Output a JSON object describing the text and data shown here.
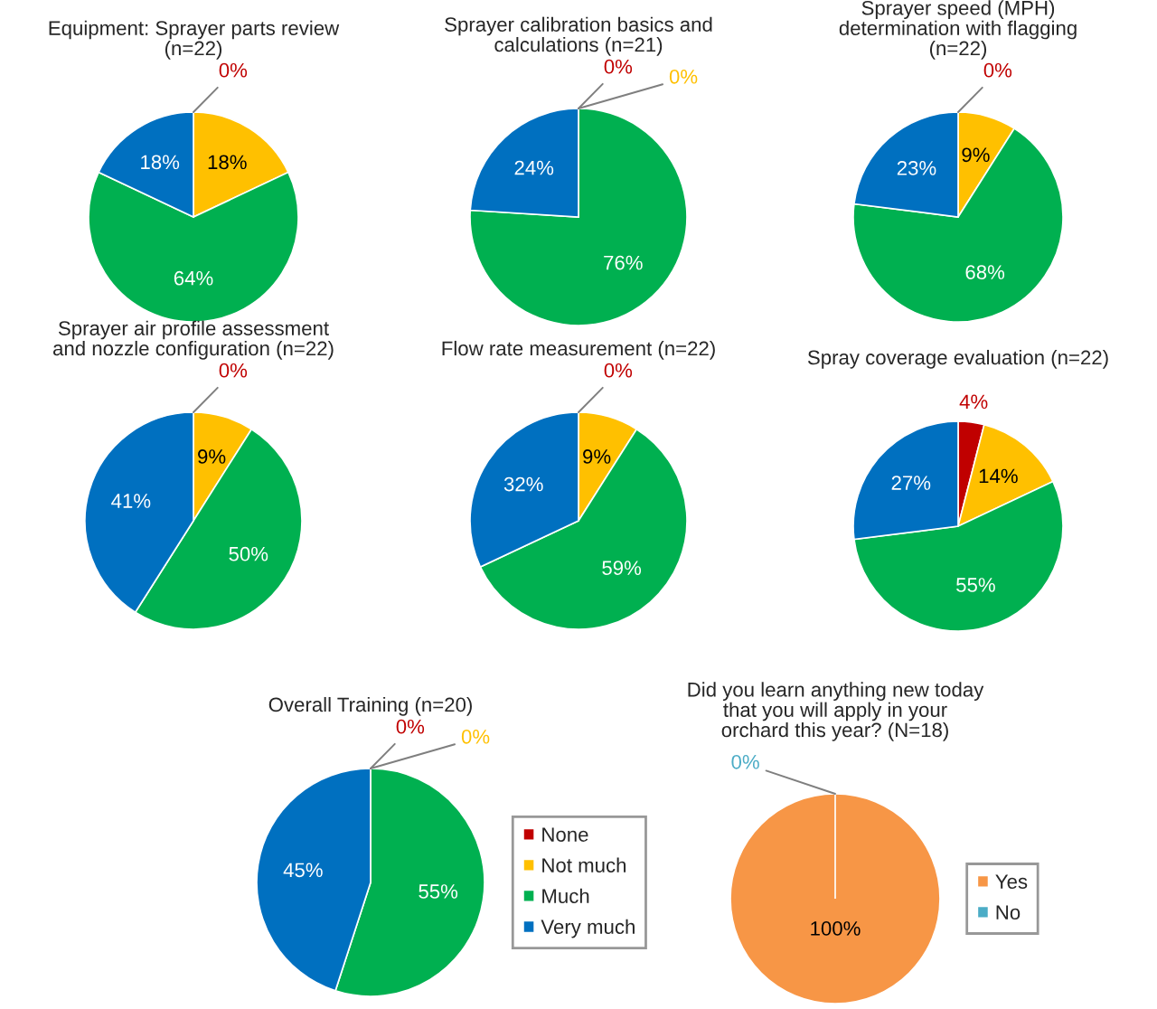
{
  "chart_data": [
    {
      "type": "pie",
      "title": "Equipment: Sprayer parts review\n(n=22)",
      "categories": [
        null,
        null,
        null,
        null
      ],
      "values": [
        0,
        18,
        64,
        18
      ],
      "colors": [
        "#c00000",
        "#ffc000",
        "#00b050",
        "#0070c0"
      ],
      "value_labels": [
        "0%",
        "18%",
        "64%",
        "18%"
      ]
    },
    {
      "type": "pie",
      "title": "Sprayer calibration basics and\ncalculations (n=21)",
      "categories": [
        null,
        null,
        null,
        null
      ],
      "values": [
        0,
        0,
        76,
        24
      ],
      "colors": [
        "#c00000",
        "#ffc000",
        "#00b050",
        "#0070c0"
      ],
      "value_labels": [
        "0%",
        "0%",
        "76%",
        "24%"
      ]
    },
    {
      "type": "pie",
      "title": "Sprayer speed (MPH)\ndetermination with flagging\n(n=22)",
      "categories": [
        null,
        null,
        null,
        null
      ],
      "values": [
        0,
        9,
        68,
        23
      ],
      "colors": [
        "#c00000",
        "#ffc000",
        "#00b050",
        "#0070c0"
      ],
      "value_labels": [
        "0%",
        "9%",
        "68%",
        "23%"
      ]
    },
    {
      "type": "pie",
      "title": "Sprayer air profile assessment\nand nozzle configuration (n=22)",
      "categories": [
        null,
        null,
        null,
        null
      ],
      "values": [
        0,
        9,
        50,
        41
      ],
      "colors": [
        "#c00000",
        "#ffc000",
        "#00b050",
        "#0070c0"
      ],
      "value_labels": [
        "0%",
        "9%",
        "50%",
        "41%"
      ]
    },
    {
      "type": "pie",
      "title": "Flow rate measurement (n=22)",
      "categories": [
        null,
        null,
        null,
        null
      ],
      "values": [
        0,
        9,
        59,
        32
      ],
      "colors": [
        "#c00000",
        "#ffc000",
        "#00b050",
        "#0070c0"
      ],
      "value_labels": [
        "0%",
        "9%",
        "59%",
        "32%"
      ]
    },
    {
      "type": "pie",
      "title": "Spray coverage evaluation (n=22)",
      "categories": [
        null,
        null,
        null,
        null
      ],
      "values": [
        4,
        14,
        55,
        27
      ],
      "colors": [
        "#c00000",
        "#ffc000",
        "#00b050",
        "#0070c0"
      ],
      "value_labels": [
        "4%",
        "14%",
        "55%",
        "27%"
      ]
    },
    {
      "type": "pie",
      "title": "Overall Training (n=20)",
      "categories": [
        "None",
        "Not much",
        "Much",
        "Very much"
      ],
      "values": [
        0,
        0,
        55,
        45
      ],
      "colors": [
        "#c00000",
        "#ffc000",
        "#00b050",
        "#0070c0"
      ],
      "value_labels": [
        "0%",
        "0%",
        "55%",
        "45%"
      ],
      "legend": "right"
    },
    {
      "type": "pie",
      "title": "Did you learn anything new today\nthat you will apply in your\norchard this year? (N=18)",
      "categories": [
        "Yes",
        "No"
      ],
      "values": [
        100,
        0
      ],
      "colors": [
        "#f79646",
        "#4bacc6"
      ],
      "value_labels": [
        "100%",
        "0%"
      ],
      "legend": "right"
    }
  ]
}
